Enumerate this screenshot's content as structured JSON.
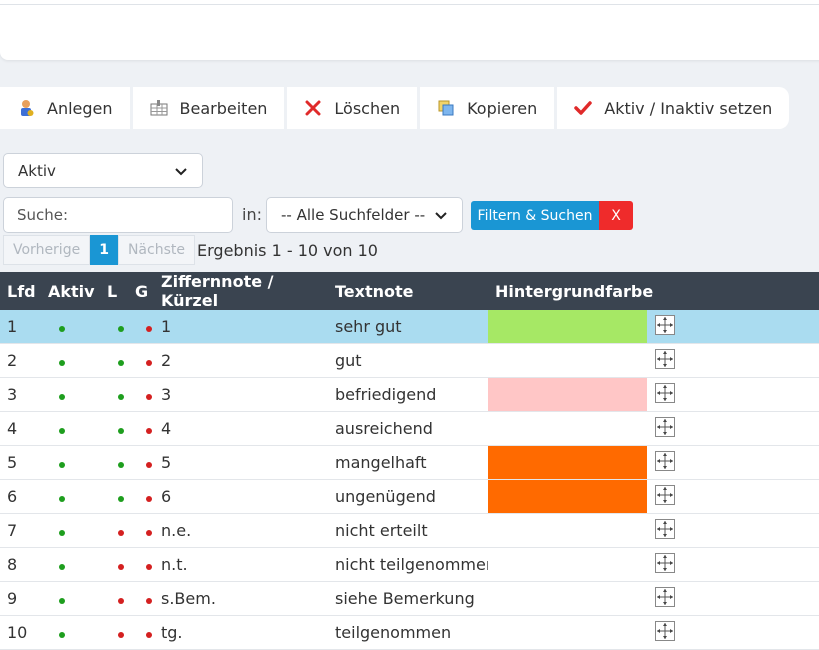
{
  "toolbar": {
    "buttons": [
      {
        "label": "Anlegen",
        "icon": "user-add-icon"
      },
      {
        "label": "Bearbeiten",
        "icon": "edit-grid-icon"
      },
      {
        "label": "Löschen",
        "icon": "delete-x-icon"
      },
      {
        "label": "Kopieren",
        "icon": "copy-icon"
      },
      {
        "label": "Aktiv / Inaktiv setzen",
        "icon": "checkmark-icon"
      }
    ]
  },
  "filter": {
    "status_value": "Aktiv",
    "search_placeholder": "Suche:",
    "in_label": "in:",
    "field_value": "-- Alle Suchfelder --",
    "submit_label": "Filtern & Suchen",
    "clear_label": "X"
  },
  "pager": {
    "prev_label": "Vorherige",
    "current_page": "1",
    "next_label": "Nächste",
    "result_text": "Ergebnis 1 - 10 von 10"
  },
  "table": {
    "headers": [
      "Lfd",
      "Aktiv",
      "L",
      "G",
      "Ziffernnote / Kürzel",
      "Textnote",
      "Hintergrundfarbe",
      ""
    ],
    "rows": [
      {
        "lfd": "1",
        "aktiv": "green",
        "l": "green",
        "g": "red",
        "kuerzel": "1",
        "textnote": "sehr gut",
        "color": "#a6e865"
      },
      {
        "lfd": "2",
        "aktiv": "green",
        "l": "green",
        "g": "red",
        "kuerzel": "2",
        "textnote": "gut",
        "color": ""
      },
      {
        "lfd": "3",
        "aktiv": "green",
        "l": "green",
        "g": "red",
        "kuerzel": "3",
        "textnote": "befriedigend",
        "color": "#ffc6c6"
      },
      {
        "lfd": "4",
        "aktiv": "green",
        "l": "green",
        "g": "red",
        "kuerzel": "4",
        "textnote": "ausreichend",
        "color": ""
      },
      {
        "lfd": "5",
        "aktiv": "green",
        "l": "green",
        "g": "red",
        "kuerzel": "5",
        "textnote": "mangelhaft",
        "color": "#ff6a00"
      },
      {
        "lfd": "6",
        "aktiv": "green",
        "l": "green",
        "g": "red",
        "kuerzel": "6",
        "textnote": "ungenügend",
        "color": "#ff6a00"
      },
      {
        "lfd": "7",
        "aktiv": "green",
        "l": "red",
        "g": "red",
        "kuerzel": "n.e.",
        "textnote": "nicht erteilt",
        "color": ""
      },
      {
        "lfd": "8",
        "aktiv": "green",
        "l": "red",
        "g": "red",
        "kuerzel": "n.t.",
        "textnote": "nicht teilgenommen",
        "color": ""
      },
      {
        "lfd": "9",
        "aktiv": "green",
        "l": "red",
        "g": "red",
        "kuerzel": "s.Bem.",
        "textnote": "siehe Bemerkung",
        "color": ""
      },
      {
        "lfd": "10",
        "aktiv": "green",
        "l": "red",
        "g": "red",
        "kuerzel": "tg.",
        "textnote": "teilgenommen",
        "color": ""
      }
    ],
    "selected_row": 0
  },
  "colors": {
    "accent": "#1a96d4",
    "header_bg": "#3a4450",
    "selected_row": "#aadcf0",
    "danger": "#ef2b2b"
  }
}
